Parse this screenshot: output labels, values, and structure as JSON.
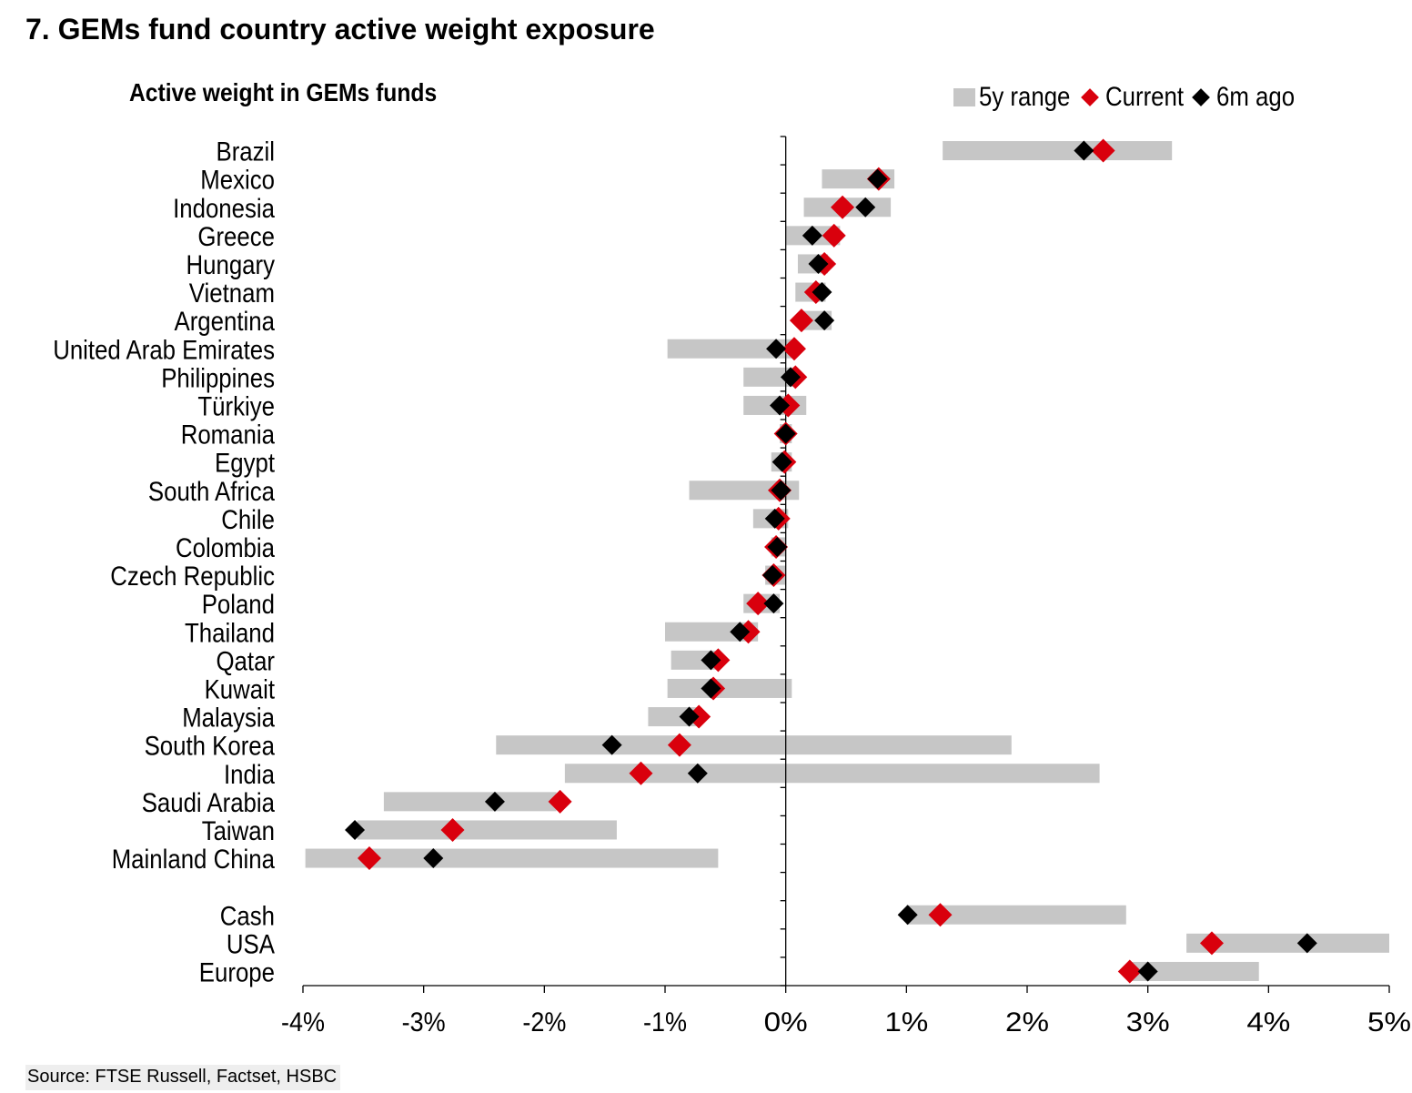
{
  "title": "7. GEMs fund country active weight exposure",
  "source": "Source: FTSE Russell, Factset, HSBC",
  "chart_data": {
    "type": "range-dot",
    "subtitle": "Active weight in GEMs funds",
    "legend": [
      {
        "name": "5y range",
        "color": "#c6c6c6",
        "shape": "bar"
      },
      {
        "name": "Current",
        "color": "#d9000d",
        "shape": "diamond"
      },
      {
        "name": "6m ago",
        "color": "#000000",
        "shape": "diamond"
      }
    ],
    "legend_position": "top-right",
    "x_ticks": [
      "-4%",
      "-3%",
      "-2%",
      "-1%",
      "0%",
      "1%",
      "2%",
      "3%",
      "4%",
      "5%"
    ],
    "xlim": [
      -4,
      5
    ],
    "grid": false,
    "categories": [
      {
        "name": "Brazil",
        "range": [
          1.3,
          3.2
        ],
        "current": 2.63,
        "ago": 2.47
      },
      {
        "name": "Mexico",
        "range": [
          0.3,
          0.9
        ],
        "current": 0.77,
        "ago": 0.76
      },
      {
        "name": "Indonesia",
        "range": [
          0.15,
          0.87
        ],
        "current": 0.47,
        "ago": 0.66
      },
      {
        "name": "Greece",
        "range": [
          0.0,
          0.45
        ],
        "current": 0.4,
        "ago": 0.22
      },
      {
        "name": "Hungary",
        "range": [
          0.1,
          0.35
        ],
        "current": 0.32,
        "ago": 0.27
      },
      {
        "name": "Vietnam",
        "range": [
          0.08,
          0.33
        ],
        "current": 0.25,
        "ago": 0.3
      },
      {
        "name": "Argentina",
        "range": [
          0.15,
          0.38
        ],
        "current": 0.13,
        "ago": 0.32
      },
      {
        "name": "United Arab Emirates",
        "range": [
          -0.98,
          0.05
        ],
        "current": 0.07,
        "ago": -0.08
      },
      {
        "name": "Philippines",
        "range": [
          -0.35,
          0.07
        ],
        "current": 0.08,
        "ago": 0.04
      },
      {
        "name": "Türkiye",
        "range": [
          -0.35,
          0.17
        ],
        "current": 0.02,
        "ago": -0.05
      },
      {
        "name": "Romania",
        "range": [
          -0.05,
          0.05
        ],
        "current": 0.0,
        "ago": 0.0
      },
      {
        "name": "Egypt",
        "range": [
          -0.12,
          0.05
        ],
        "current": -0.01,
        "ago": -0.03
      },
      {
        "name": "South Africa",
        "range": [
          -0.8,
          0.11
        ],
        "current": -0.05,
        "ago": -0.04
      },
      {
        "name": "Chile",
        "range": [
          -0.27,
          0.02
        ],
        "current": -0.06,
        "ago": -0.09
      },
      {
        "name": "Colombia",
        "range": [
          -0.12,
          0.0
        ],
        "current": -0.08,
        "ago": -0.07
      },
      {
        "name": "Czech Republic",
        "range": [
          -0.17,
          0.0
        ],
        "current": -0.1,
        "ago": -0.11
      },
      {
        "name": "Poland",
        "range": [
          -0.35,
          -0.05
        ],
        "current": -0.23,
        "ago": -0.1
      },
      {
        "name": "Thailand",
        "range": [
          -1.0,
          -0.23
        ],
        "current": -0.31,
        "ago": -0.38
      },
      {
        "name": "Qatar",
        "range": [
          -0.95,
          -0.55
        ],
        "current": -0.56,
        "ago": -0.62
      },
      {
        "name": "Kuwait",
        "range": [
          -0.98,
          0.05
        ],
        "current": -0.6,
        "ago": -0.62
      },
      {
        "name": "Malaysia",
        "range": [
          -1.14,
          -0.7
        ],
        "current": -0.72,
        "ago": -0.8
      },
      {
        "name": "South Korea",
        "range": [
          -2.4,
          1.87
        ],
        "current": -0.88,
        "ago": -1.44
      },
      {
        "name": "India",
        "range": [
          -1.83,
          2.6
        ],
        "current": -1.2,
        "ago": -0.73
      },
      {
        "name": "Saudi Arabia",
        "range": [
          -3.33,
          -1.9
        ],
        "current": -1.87,
        "ago": -2.41
      },
      {
        "name": "Taiwan",
        "range": [
          -3.55,
          -1.4
        ],
        "current": -2.76,
        "ago": -3.57
      },
      {
        "name": "Mainland China",
        "range": [
          -3.98,
          -0.56
        ],
        "current": -3.45,
        "ago": -2.92
      },
      {
        "name": "",
        "spacer": true
      },
      {
        "name": "Cash",
        "range": [
          1.0,
          2.82
        ],
        "current": 1.28,
        "ago": 1.01
      },
      {
        "name": "USA",
        "range": [
          3.32,
          5.0
        ],
        "current": 3.53,
        "ago": 4.32
      },
      {
        "name": "Europe",
        "range": [
          2.87,
          3.92
        ],
        "current": 2.85,
        "ago": 3.0
      }
    ]
  }
}
